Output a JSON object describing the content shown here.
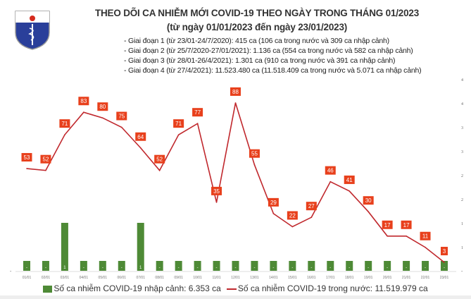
{
  "header": {
    "logo_text": "BỘ Y TẾ · MINISTRY OF HEALTH",
    "title": "THEO DÕI CA NHIỄM MỚI COVID-19 THEO NGÀY TRONG THÁNG 01/2023",
    "subtitle": "(từ ngày 01/01/2023 đến ngày 23/01/2023)",
    "phases": [
      "- Giai đoạn 1 (từ 23/01-24/7/2020): 415 ca (106 ca trong nước và 309 ca nhập cảnh)",
      "- Giai đoạn 2 (từ 25/7/2020-27/01/2021): 1.136 ca (554 ca trong nước và 582 ca nhập cảnh)",
      "- Giai đoạn 3 (từ 28/01-26/4/2021): 1.301 ca (910 ca trong nước và 391 ca nhập cảnh)",
      "- Giai đoạn 4 (từ 27/4/2021): 11.523.480 ca (11.518.409 ca trong nước và 5.071 ca nhập cảnh)"
    ]
  },
  "chart_data": {
    "type": "bar+line",
    "categories": [
      "01/01",
      "02/01",
      "03/01",
      "04/01",
      "05/01",
      "06/01",
      "07/01",
      "08/01",
      "09/01",
      "10/01",
      "11/01",
      "12/01",
      "13/01",
      "14/01",
      "15/01",
      "16/01",
      "17/01",
      "18/01",
      "19/01",
      "20/01",
      "21/01",
      "22/01",
      "23/01"
    ],
    "series": [
      {
        "name": "Số ca nhiễm COVID-19 nhập cảnh: 6.353 ca",
        "type": "bar",
        "axis": "right",
        "color": "#4e8a36",
        "values": [
          0,
          0,
          1,
          0,
          0,
          0,
          1,
          0,
          0,
          0,
          0,
          0,
          0,
          0,
          0,
          0,
          0,
          0,
          0,
          0,
          0,
          0,
          0
        ],
        "labels": [
          "-",
          "-",
          "1",
          "-",
          "-",
          "-",
          "1",
          "-",
          "-",
          "-",
          "-",
          "-",
          "-",
          "-",
          "-",
          "-",
          "-",
          "-",
          "-",
          "-",
          "-",
          "-",
          "-"
        ]
      },
      {
        "name": "Số ca nhiễm COVID-19 trong nước: 11.519.979 ca",
        "type": "line",
        "axis": "left-hidden",
        "color": "#c0282d",
        "label_color": "#e8401c",
        "values": [
          53,
          52,
          71,
          83,
          80,
          75,
          64,
          52,
          71,
          77,
          35,
          88,
          55,
          29,
          22,
          27,
          46,
          41,
          30,
          17,
          17,
          11,
          3
        ]
      }
    ],
    "right_axis": {
      "range": [
        0,
        4
      ],
      "ticks": [
        0.5,
        1,
        1.5,
        2,
        2.5,
        3,
        3.5,
        4
      ],
      "tick_labels": [
        "1",
        "1",
        "2",
        "2",
        "3",
        "3",
        "4",
        "4"
      ],
      "zero_label": "-"
    },
    "grid": false,
    "legend": "bottom"
  }
}
